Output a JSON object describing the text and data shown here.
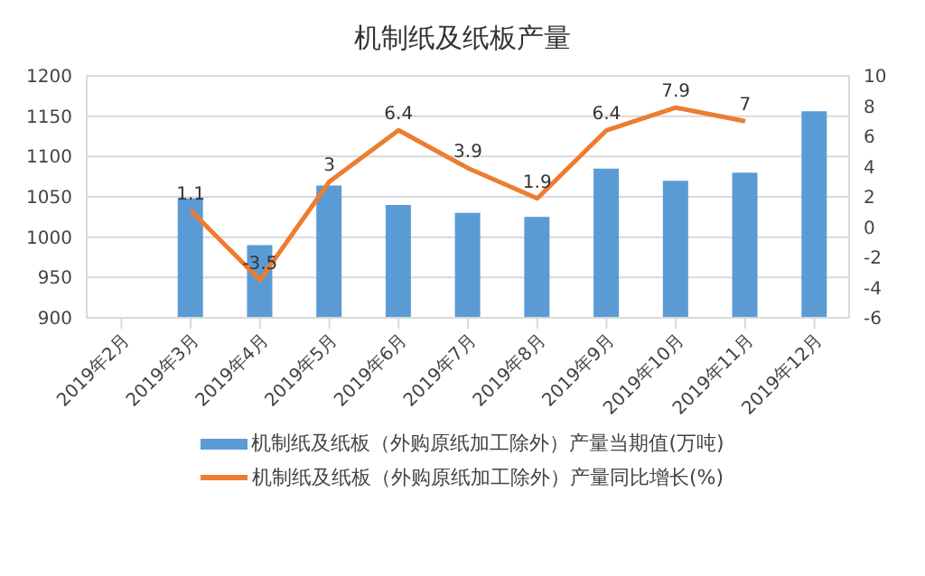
{
  "chart_data": {
    "type": "bar",
    "title": "机制纸及纸板产量",
    "categories": [
      "2019年2月",
      "2019年3月",
      "2019年4月",
      "2019年5月",
      "2019年6月",
      "2019年7月",
      "2019年8月",
      "2019年9月",
      "2019年10月",
      "2019年11月",
      "2019年12月"
    ],
    "series": [
      {
        "name": "机制纸及纸板（外购原纸加工除外）产量当期值(万吨)",
        "color": "#5b9bd5",
        "values": [
          null,
          1048,
          990,
          1064,
          1040,
          1030,
          1025,
          1085,
          1070,
          1080,
          1156
        ]
      },
      {
        "name": "机制纸及纸板（外购原纸加工除外）产量同比增长(%)",
        "type": "line",
        "axis": "y2",
        "color": "#ed7d31",
        "values": [
          null,
          1.1,
          -3.5,
          3,
          6.4,
          3.9,
          1.9,
          6.4,
          7.9,
          7,
          null
        ],
        "data_labels": true
      }
    ],
    "ylim": [
      900,
      1200
    ],
    "yticks": [
      900,
      950,
      1000,
      1050,
      1100,
      1150,
      1200
    ],
    "y2lim": [
      -6,
      10
    ],
    "y2ticks": [
      -6,
      -4,
      -2,
      0,
      2,
      4,
      6,
      8,
      10
    ],
    "grid": "y",
    "legend": "bottom",
    "marker": "none"
  }
}
